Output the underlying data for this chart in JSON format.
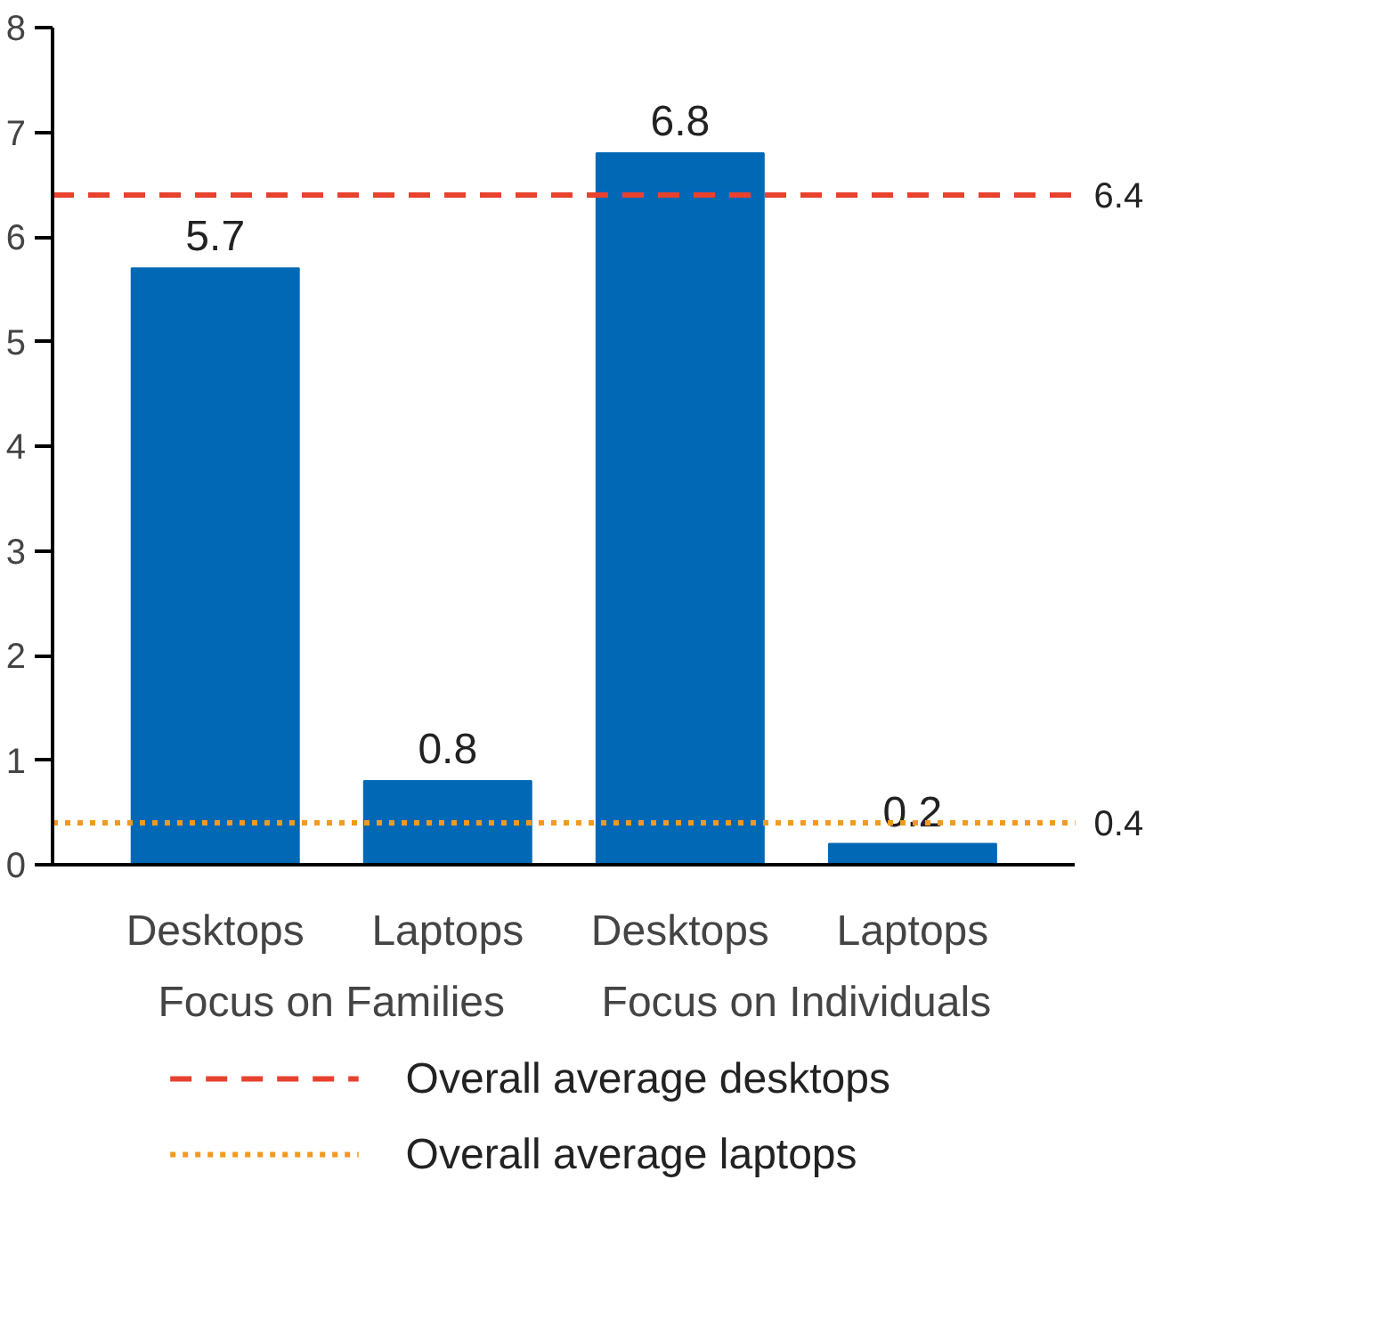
{
  "chart_data": {
    "type": "bar",
    "categories": [
      "Desktops",
      "Laptops",
      "Desktops",
      "Laptops"
    ],
    "values": [
      5.7,
      0.8,
      6.8,
      0.2
    ],
    "color": "#0068b5",
    "data_labels": true,
    "ylim": [
      0,
      8
    ],
    "yticks": [
      0,
      1,
      2,
      3,
      4,
      5,
      6,
      7,
      8
    ],
    "grid": false,
    "legend": "bottom",
    "annotations": [
      "Focus on Families",
      "Focus on Individuals",
      "6.4",
      "0.4"
    ],
    "ref_lines": [
      {
        "axis": "y",
        "value": 6.4,
        "label": "Overall average desktops",
        "color": "#e8412e",
        "line_style": "dashed"
      },
      {
        "axis": "y",
        "value": 0.4,
        "label": "Overall average laptops",
        "color": "#f29a1f",
        "line_style": "dotted"
      }
    ]
  }
}
